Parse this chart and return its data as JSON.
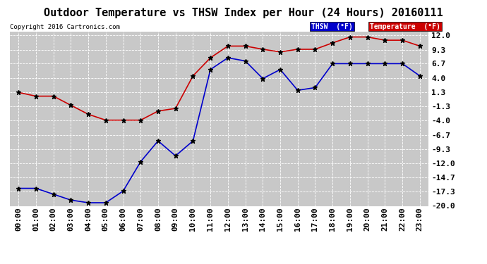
{
  "title": "Outdoor Temperature vs THSW Index per Hour (24 Hours) 20160111",
  "copyright": "Copyright 2016 Cartronics.com",
  "background_color": "#ffffff",
  "plot_background": "#c8c8c8",
  "grid_color": "#e8e8e8",
  "hours": [
    "00:00",
    "01:00",
    "02:00",
    "03:00",
    "04:00",
    "05:00",
    "06:00",
    "07:00",
    "08:00",
    "09:00",
    "10:00",
    "11:00",
    "12:00",
    "13:00",
    "14:00",
    "15:00",
    "16:00",
    "17:00",
    "18:00",
    "19:00",
    "20:00",
    "21:00",
    "22:00",
    "23:00"
  ],
  "temperature": [
    1.3,
    0.6,
    0.6,
    -1.1,
    -2.8,
    -3.9,
    -3.9,
    -3.9,
    -2.2,
    -1.7,
    4.4,
    7.8,
    10.0,
    10.0,
    9.4,
    8.9,
    9.4,
    9.4,
    10.6,
    11.7,
    11.7,
    11.1,
    11.1,
    10.0
  ],
  "thsw": [
    -16.7,
    -16.7,
    -17.8,
    -18.9,
    -19.4,
    -19.4,
    -17.2,
    -11.7,
    -7.8,
    -10.6,
    -7.8,
    5.6,
    7.8,
    7.2,
    3.9,
    5.6,
    1.7,
    2.2,
    6.7,
    6.7,
    6.7,
    6.7,
    6.7,
    4.4
  ],
  "temp_color": "#cc0000",
  "thsw_color": "#0000cc",
  "marker": "*",
  "marker_color": "#000000",
  "marker_size": 5,
  "ylim": [
    -20.0,
    12.7
  ],
  "yticks": [
    -20.0,
    -17.3,
    -14.7,
    -12.0,
    -9.3,
    -6.7,
    -4.0,
    -1.3,
    1.3,
    4.0,
    6.7,
    9.3,
    12.0
  ],
  "ytick_labels": [
    "-20.0",
    "-17.3",
    "-14.7",
    "-12.0",
    "-9.3",
    "-6.7",
    "-4.0",
    "-1.3",
    "1.3",
    "4.0",
    "6.7",
    "9.3",
    "12.0"
  ],
  "title_fontsize": 11,
  "tick_fontsize": 8,
  "legend_thsw_label": "THSW  (°F)",
  "legend_temp_label": "Temperature  (°F)",
  "thsw_legend_bg": "#0000cc",
  "temp_legend_bg": "#cc0000"
}
